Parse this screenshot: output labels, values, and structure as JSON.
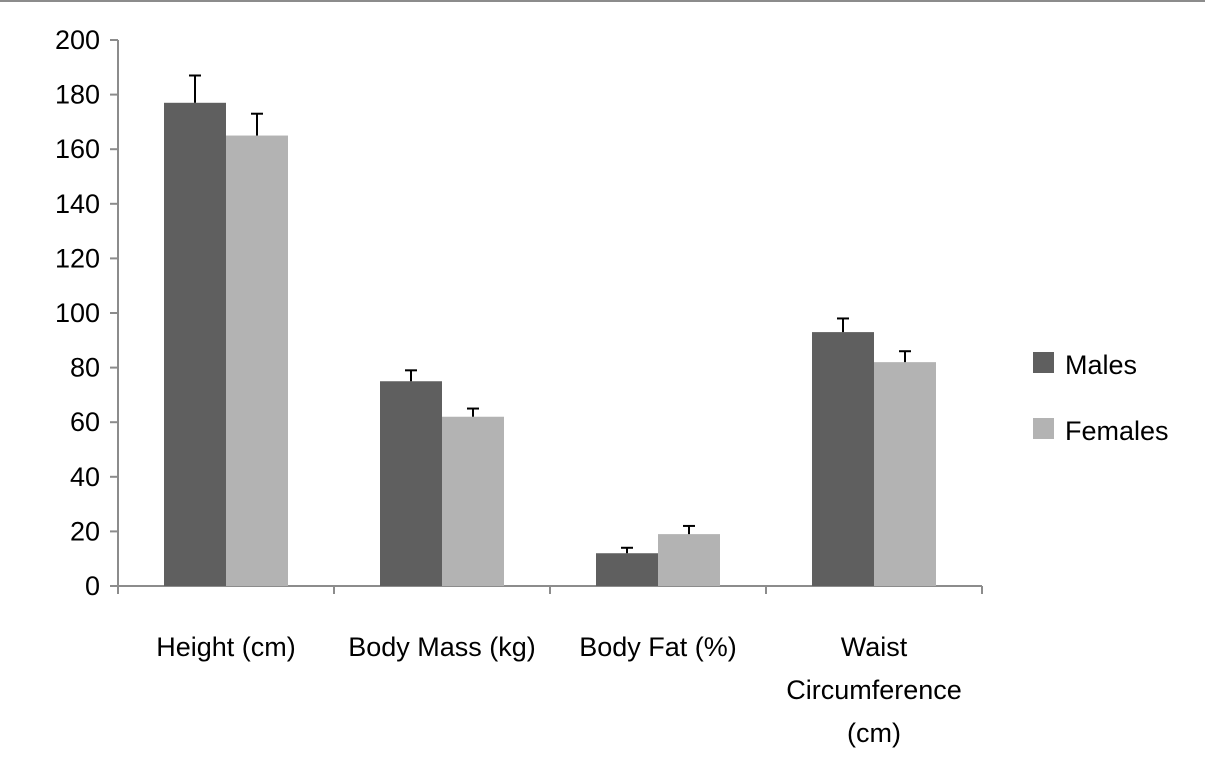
{
  "chart_data": {
    "type": "bar",
    "categories": [
      [
        "Height (cm)"
      ],
      [
        "Body Mass  (kg)"
      ],
      [
        "Body Fat (%)"
      ],
      [
        "Waist",
        "Circumference",
        "(cm)"
      ]
    ],
    "series": [
      {
        "name": "Males",
        "color": "#5f5f5f",
        "values": [
          177,
          75,
          12,
          93
        ],
        "errors": [
          10,
          4,
          2,
          5
        ]
      },
      {
        "name": "Females",
        "color": "#b3b3b3",
        "values": [
          165,
          62,
          19,
          82
        ],
        "errors": [
          8,
          3,
          3,
          4
        ]
      }
    ],
    "title": "",
    "xlabel": "",
    "ylabel": "",
    "ylim": [
      0,
      200
    ],
    "yticks": [
      0,
      20,
      40,
      60,
      80,
      100,
      120,
      140,
      160,
      180,
      200
    ],
    "grid": false,
    "legend": "right"
  }
}
